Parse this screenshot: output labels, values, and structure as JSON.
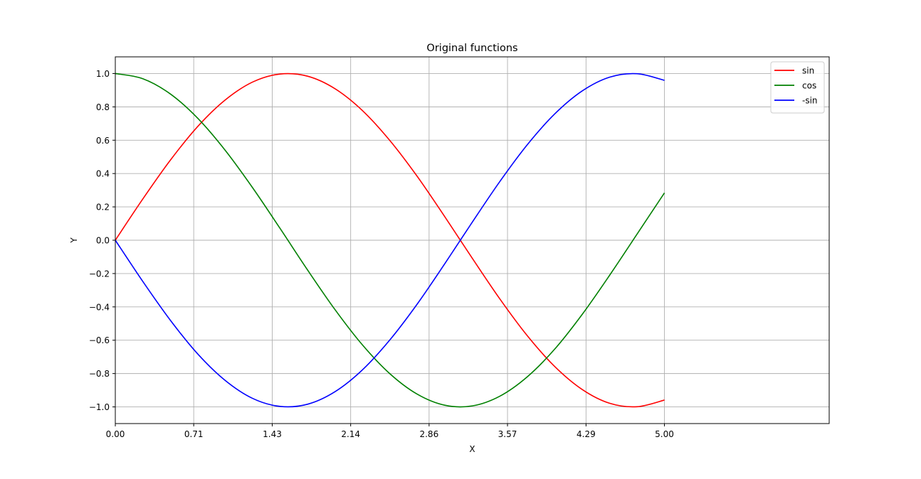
{
  "chart_data": {
    "type": "line",
    "title": "Original functions",
    "xlabel": "X",
    "ylabel": "Y",
    "xlim": [
      0,
      6.5
    ],
    "ylim": [
      -1.1,
      1.1
    ],
    "x_ticks": [
      0,
      0.714,
      1.429,
      2.143,
      2.857,
      3.571,
      4.286,
      5.0
    ],
    "x_tick_labels": [
      "0.00",
      "0.71",
      "1.43",
      "2.14",
      "2.86",
      "3.57",
      "4.29",
      "5.00"
    ],
    "y_ticks": [
      -1.0,
      -0.8,
      -0.6,
      -0.4,
      -0.2,
      0.0,
      0.2,
      0.4,
      0.6,
      0.8,
      1.0
    ],
    "y_tick_labels": [
      "−1.0",
      "−0.8",
      "−0.6",
      "−0.4",
      "−0.2",
      "0.0",
      "0.2",
      "0.4",
      "0.6",
      "0.8",
      "1.0"
    ],
    "grid": true,
    "legend_position": "top-right",
    "x": [
      0.0,
      0.25,
      0.5,
      0.75,
      1.0,
      1.25,
      1.5,
      1.75,
      2.0,
      2.25,
      2.5,
      2.75,
      3.0,
      3.25,
      3.5,
      3.75,
      4.0,
      4.25,
      4.5,
      4.75,
      5.0
    ],
    "series": [
      {
        "name": "sin",
        "color": "#ff0000",
        "values": [
          0.0,
          0.247,
          0.479,
          0.682,
          0.841,
          0.949,
          0.997,
          0.984,
          0.909,
          0.778,
          0.598,
          0.382,
          0.141,
          -0.108,
          -0.351,
          -0.572,
          -0.757,
          -0.895,
          -0.978,
          -0.999,
          -0.959
        ]
      },
      {
        "name": "cos",
        "color": "#008000",
        "values": [
          1.0,
          0.969,
          0.878,
          0.732,
          0.54,
          0.315,
          0.071,
          -0.178,
          -0.416,
          -0.628,
          -0.801,
          -0.924,
          -0.99,
          -0.994,
          -0.936,
          -0.82,
          -0.654,
          -0.446,
          -0.211,
          0.036,
          0.284
        ]
      },
      {
        "name": "-sin",
        "color": "#0000ff",
        "values": [
          0.0,
          -0.247,
          -0.479,
          -0.682,
          -0.841,
          -0.949,
          -0.997,
          -0.984,
          -0.909,
          -0.778,
          -0.598,
          -0.382,
          -0.141,
          0.108,
          0.351,
          0.572,
          0.757,
          0.895,
          0.978,
          0.999,
          0.959
        ]
      }
    ]
  }
}
